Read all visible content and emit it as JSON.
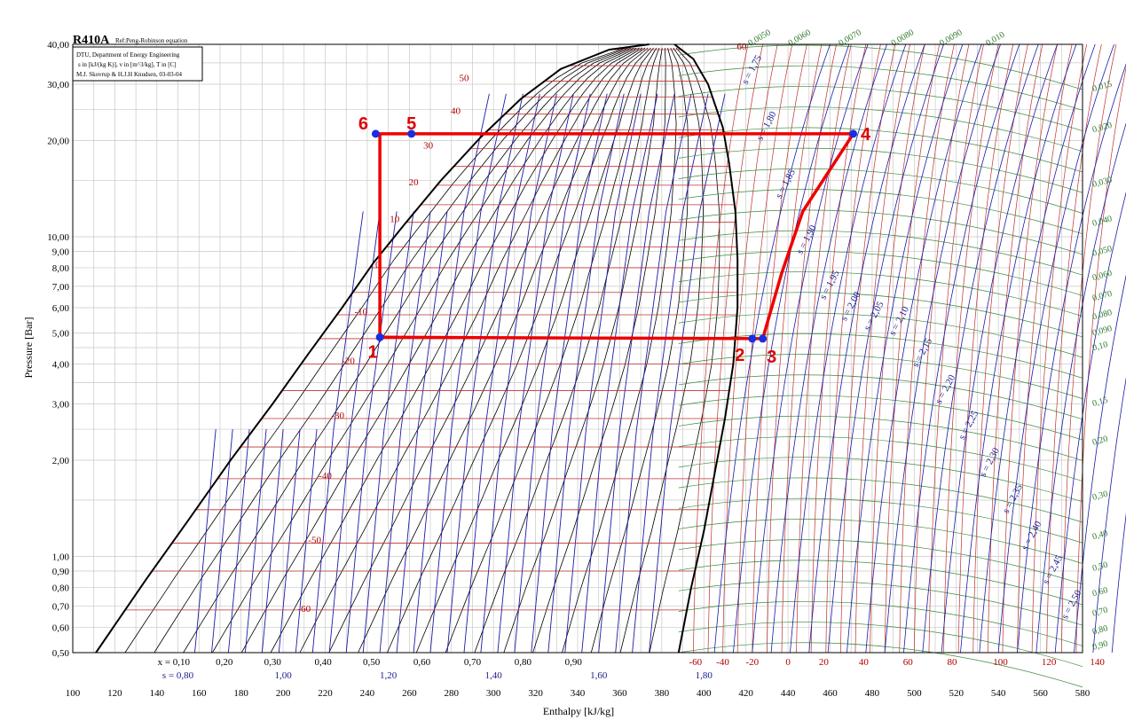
{
  "title": "R410A",
  "subtitle": "Ref:Peng-Robinson equation",
  "legend_box": [
    "DTU, Department of Energy Engineering",
    "s in [kJ/(kg K)], v in [m^3/kg], T in [C]",
    "M.J. Skovrup & H.J.H Knudsen, 03-03-04"
  ],
  "chart_data": {
    "type": "line",
    "title": "R410A",
    "xlabel": "Enthalpy [kJ/kg]",
    "ylabel": "Pressure [Bar]",
    "xlim": [
      100,
      580
    ],
    "ylim": [
      0.5,
      40
    ],
    "y_scale": "log",
    "x_ticks": [
      "100",
      "120",
      "140",
      "160",
      "180",
      "200",
      "220",
      "240",
      "260",
      "280",
      "300",
      "320",
      "340",
      "360",
      "380",
      "400",
      "420",
      "440",
      "460",
      "480",
      "500",
      "520",
      "540",
      "560",
      "580"
    ],
    "y_ticks": [
      {
        "v": 0.5,
        "l": "0,50"
      },
      {
        "v": 0.6,
        "l": "0,60"
      },
      {
        "v": 0.7,
        "l": "0,70"
      },
      {
        "v": 0.8,
        "l": "0,80"
      },
      {
        "v": 0.9,
        "l": "0,90"
      },
      {
        "v": 1.0,
        "l": "1,00"
      },
      {
        "v": 2.0,
        "l": "2,00"
      },
      {
        "v": 3.0,
        "l": "3,00"
      },
      {
        "v": 4.0,
        "l": "4,00"
      },
      {
        "v": 5.0,
        "l": "5,00"
      },
      {
        "v": 6.0,
        "l": "6,00"
      },
      {
        "v": 7.0,
        "l": "7,00"
      },
      {
        "v": 8.0,
        "l": "8,00"
      },
      {
        "v": 9.0,
        "l": "9,00"
      },
      {
        "v": 10.0,
        "l": "10,00"
      },
      {
        "v": 20.0,
        "l": "20,00"
      },
      {
        "v": 30.0,
        "l": "30,00"
      },
      {
        "v": 40.0,
        "l": "40,00"
      }
    ],
    "quality_labels": [
      "x = 0,10",
      "0,20",
      "0,30",
      "0,40",
      "0,50",
      "0,60",
      "0,70",
      "0,80",
      "0,90"
    ],
    "quality_h": [
      148,
      172,
      195,
      219,
      242,
      266,
      290,
      314,
      338
    ],
    "entropy_labels": [
      "s = 0,80",
      "1,00",
      "1,20",
      "1,40",
      "1,60",
      "1,80"
    ],
    "entropy_h": [
      150,
      200,
      250,
      300,
      350,
      400
    ],
    "superheat_temp_labels": [
      "-60",
      "-40",
      "-20",
      "0",
      "20",
      "40",
      "60",
      "80",
      "100",
      "120",
      "140"
    ],
    "superheat_temp_h": [
      396,
      409,
      423,
      440,
      457,
      476,
      497,
      518,
      541,
      564,
      587
    ],
    "isotherms": [
      {
        "t": 50,
        "label": "50",
        "p": 30.7,
        "h": 286
      },
      {
        "t": 40,
        "label": "40",
        "p": 24.2,
        "h": 282
      },
      {
        "t": 30,
        "label": "30",
        "p": 18.9,
        "h": 269
      },
      {
        "t": 20,
        "label": "20",
        "p": 14.5,
        "h": 262
      },
      {
        "t": 10,
        "label": "10",
        "p": 11.1,
        "h": 253
      },
      {
        "t": 0,
        "label": "0",
        "p": 8.0,
        "h": 245
      },
      {
        "t": -10,
        "label": "-10",
        "p": 5.7,
        "h": 237
      },
      {
        "t": -20,
        "label": "-20",
        "p": 4.0,
        "h": 231
      },
      {
        "t": -30,
        "label": "-30",
        "p": 2.7,
        "h": 226
      },
      {
        "t": -40,
        "label": "-40",
        "p": 1.75,
        "h": 220
      },
      {
        "t": -50,
        "label": "-50",
        "p": 1.1,
        "h": 215
      },
      {
        "t": -60,
        "label": "-60",
        "p": 0.67,
        "h": 210
      },
      {
        "t": 60,
        "label": "60",
        "p": 38.5,
        "h": 418
      }
    ],
    "entropy_vapor_labels": [
      {
        "label": "s = 1,75",
        "h": 424,
        "p": 33
      },
      {
        "label": "s = 1,80",
        "h": 431,
        "p": 22
      },
      {
        "label": "s = 1,85",
        "h": 440,
        "p": 14.5
      },
      {
        "label": "s = 1,90",
        "h": 450,
        "p": 9.7
      },
      {
        "label": "s = 1,95",
        "h": 461,
        "p": 7.0
      },
      {
        "label": "s = 2,00",
        "h": 471,
        "p": 6.0
      },
      {
        "label": "s = 2,05",
        "h": 482,
        "p": 5.6
      },
      {
        "label": "s = 2,10",
        "h": 494,
        "p": 5.4
      },
      {
        "label": "s = 2,15",
        "h": 505,
        "p": 4.3
      },
      {
        "label": "s = 2,20",
        "h": 516,
        "p": 3.3
      },
      {
        "label": "s = 2,25",
        "h": 527,
        "p": 2.55
      },
      {
        "label": "s = 2,30",
        "h": 537,
        "p": 1.95
      },
      {
        "label": "s = 2,35",
        "h": 548,
        "p": 1.5
      },
      {
        "label": "s = 2,40",
        "h": 557,
        "p": 1.15
      },
      {
        "label": "s = 2,45",
        "h": 567,
        "p": 0.9
      },
      {
        "label": "s = 2,50",
        "h": 576,
        "p": 0.7
      }
    ],
    "volume_labels": [
      {
        "label": "0,0050",
        "h": 422,
        "p": 39.5
      },
      {
        "label": "0,0060",
        "h": 441,
        "p": 39.5
      },
      {
        "label": "0,0070",
        "h": 465,
        "p": 39.5
      },
      {
        "label": "0,0080",
        "h": 490,
        "p": 39.5
      },
      {
        "label": "0,0090",
        "h": 513,
        "p": 39.5
      },
      {
        "label": "0,010",
        "h": 535,
        "p": 39.5
      },
      {
        "label": "0,015",
        "h": 580,
        "p": 28.5
      },
      {
        "label": "0,020",
        "h": 580,
        "p": 21.2
      },
      {
        "label": "0,030",
        "h": 580,
        "p": 14.3
      },
      {
        "label": "0,040",
        "h": 580,
        "p": 10.8
      },
      {
        "label": "0,050",
        "h": 580,
        "p": 8.7
      },
      {
        "label": "0,060",
        "h": 580,
        "p": 7.3
      },
      {
        "label": "0,070",
        "h": 580,
        "p": 6.3
      },
      {
        "label": "0,080",
        "h": 580,
        "p": 5.5
      },
      {
        "label": "0,090",
        "h": 580,
        "p": 4.9
      },
      {
        "label": "0,10",
        "h": 580,
        "p": 4.4
      },
      {
        "label": "0,15",
        "h": 580,
        "p": 2.95
      },
      {
        "label": "0,20",
        "h": 580,
        "p": 2.23
      },
      {
        "label": "0,30",
        "h": 580,
        "p": 1.5
      },
      {
        "label": "0,40",
        "h": 580,
        "p": 1.13
      },
      {
        "label": "0,50",
        "h": 580,
        "p": 0.9
      },
      {
        "label": "0,60",
        "h": 580,
        "p": 0.75
      },
      {
        "label": "0,70",
        "h": 580,
        "p": 0.65
      },
      {
        "label": "0,80",
        "h": 580,
        "p": 0.57
      },
      {
        "label": "0,90",
        "h": 580,
        "p": 0.51
      }
    ],
    "saturated_liquid": [
      [
        111,
        0.5
      ],
      [
        135,
        0.85
      ],
      [
        155,
        1.3
      ],
      [
        175,
        2.0
      ],
      [
        195,
        3.0
      ],
      [
        212,
        4.3
      ],
      [
        228,
        6.0
      ],
      [
        243,
        8.3
      ],
      [
        258,
        11.0
      ],
      [
        275,
        15.0
      ],
      [
        294,
        20.5
      ],
      [
        313,
        27.0
      ],
      [
        332,
        33.5
      ],
      [
        355,
        38.5
      ],
      [
        374,
        40.0
      ]
    ],
    "saturated_vapor": [
      [
        386,
        40.0
      ],
      [
        395,
        36.0
      ],
      [
        402,
        30.0
      ],
      [
        409,
        22.0
      ],
      [
        412,
        17.0
      ],
      [
        415,
        12.0
      ],
      [
        416,
        8.5
      ],
      [
        416,
        6.0
      ],
      [
        414,
        4.0
      ],
      [
        410,
        2.7
      ],
      [
        405,
        1.8
      ],
      [
        400,
        1.2
      ],
      [
        394,
        0.8
      ],
      [
        388,
        0.5
      ]
    ],
    "cycle": {
      "series_color": "#ee0000",
      "points": [
        {
          "id": "1",
          "label": "1",
          "h": 246,
          "p": 4.85
        },
        {
          "id": "2",
          "label": "2",
          "h": 423,
          "p": 4.8
        },
        {
          "id": "3",
          "label": "3",
          "h": 428,
          "p": 4.8
        },
        {
          "id": "4",
          "label": "4",
          "h": 471,
          "p": 21.0
        },
        {
          "id": "5",
          "label": "5",
          "h": 261,
          "p": 21.0
        },
        {
          "id": "6",
          "label": "6",
          "h": 244,
          "p": 21.0
        }
      ],
      "compression_path": [
        [
          428,
          4.8
        ],
        [
          437,
          7.7
        ],
        [
          447,
          12.0
        ],
        [
          471,
          21.0
        ]
      ],
      "throttle_path": [
        [
          246,
          4.85
        ],
        [
          246,
          21.0
        ]
      ],
      "evaporator_path": [
        [
          246,
          4.85
        ],
        [
          428,
          4.8
        ]
      ],
      "condenser_path": [
        [
          244,
          21.0
        ],
        [
          471,
          21.0
        ]
      ]
    },
    "grid": true
  }
}
